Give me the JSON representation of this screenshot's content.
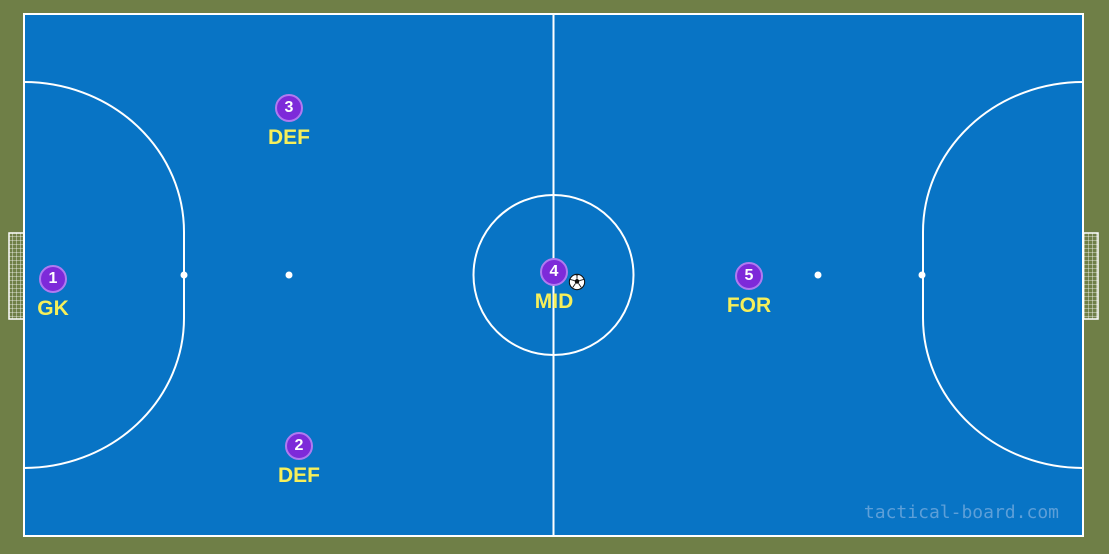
{
  "colors": {
    "outer_turf": "#6f7f47",
    "court": "#0874c5",
    "lines": "#ffffff",
    "player_fill": "#7d2ad9",
    "player_border": "#b07af0",
    "label": "#f6ef5a",
    "watermark": "#5d9fd8"
  },
  "players": [
    {
      "number": "1",
      "role": "GK",
      "icon": "player-token"
    },
    {
      "number": "2",
      "role": "DEF",
      "icon": "player-token"
    },
    {
      "number": "3",
      "role": "DEF",
      "icon": "player-token"
    },
    {
      "number": "4",
      "role": "MID",
      "icon": "player-token"
    },
    {
      "number": "5",
      "role": "FOR",
      "icon": "player-token"
    }
  ],
  "ball": {
    "icon": "soccer-ball-icon"
  },
  "watermark": "tactical-board.com"
}
